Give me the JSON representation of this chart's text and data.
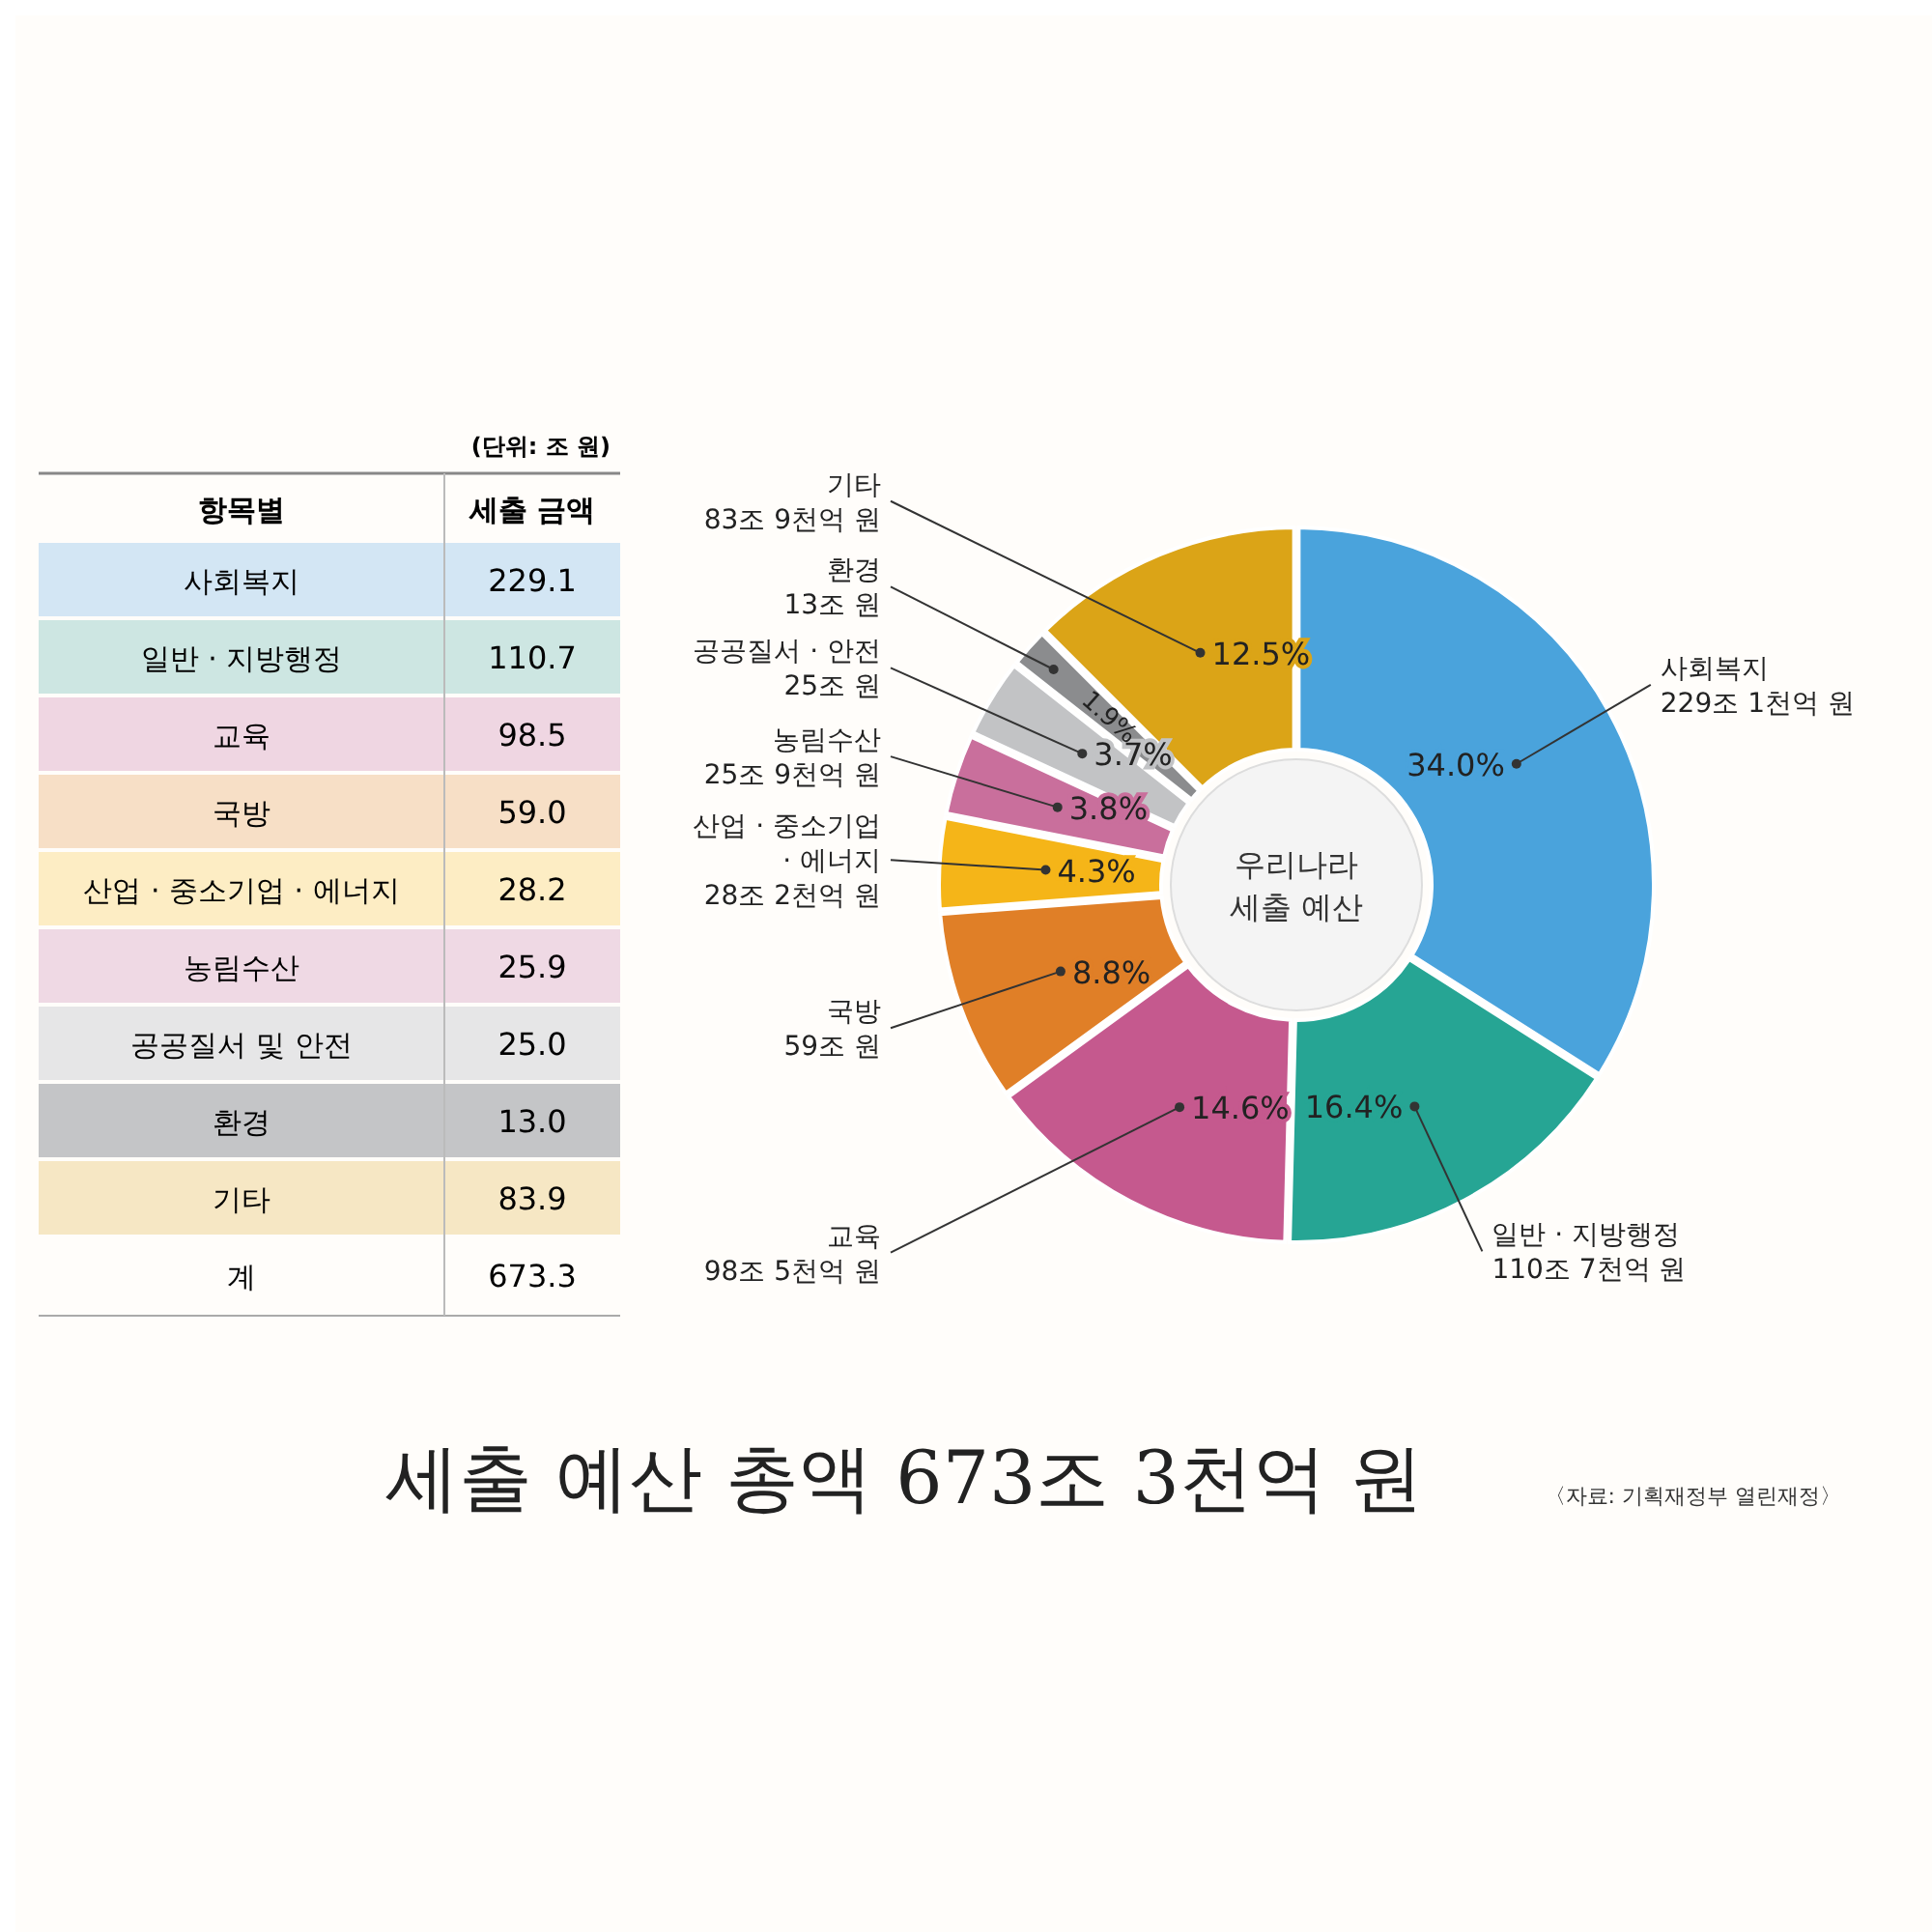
{
  "chart_data": [
    {
      "type": "other",
      "categories": [
        "사회복지",
        "일반 · 지방행정",
        "교육",
        "국방",
        "산업 · 중소기업 · 에너지",
        "농림수산",
        "공공질서 및 안전",
        "환경",
        "기타"
      ],
      "colors": [
        "#d3e6f4",
        "#cde6e2",
        "#efd6e2",
        "#f7dfc6",
        "#fdedc4",
        "#efd9e4",
        "#e6e6e7",
        "#c4c5c7",
        "#f6e7c4"
      ],
      "value_labels": [
        "229.1",
        "110.7",
        "98.5",
        "59.0",
        "28.2",
        "25.9",
        "25.0",
        "13.0",
        "83.9"
      ],
      "totals": [
        "673.3"
      ],
      "annotations": [
        "(단위: 조 원)",
        "항목별",
        "세출 금액",
        "계"
      ]
    },
    {
      "type": "donut",
      "title": "세출 예산 총액 673조 3천억 원",
      "categories": [
        "사회복지",
        "일반 · 지방행정",
        "교육",
        "국방",
        "산업 · 중소기업 · 에너지",
        "농림수산",
        "공공질서 · 안전",
        "환경",
        "기타"
      ],
      "values": [
        34.0,
        16.4,
        14.6,
        8.8,
        4.3,
        3.8,
        3.7,
        1.9,
        12.5
      ],
      "value_labels": [
        "34.0%",
        "16.4%",
        "14.6%",
        "8.8%",
        "4.3%",
        "3.8%",
        "3.7%",
        "1.9%",
        "12.5%"
      ],
      "colors": [
        "#4aa3dc",
        "#26a594",
        "#c5598e",
        "#e07f27",
        "#f5b518",
        "#c96f9c",
        "#c2c3c5",
        "#8b8c8e",
        "#dba417"
      ],
      "annotations": [
        "우리나라\n세출 예산",
        "〈자료: 기획재정부 열린재정〉",
        {
          "text": "229조 1천억 원",
          "x": "사회복지"
        },
        {
          "text": "110조 7천억 원",
          "x": "일반 · 지방행정"
        },
        {
          "text": "98조 5천억 원",
          "x": "교육"
        },
        {
          "text": "59조 원",
          "x": "국방"
        },
        {
          "text": "28조 2천억 원",
          "x": "산업 · 중소기업 · 에너지"
        },
        {
          "text": "25조 9천억 원",
          "x": "농림수산"
        },
        {
          "text": "25조 원",
          "x": "공공질서 · 안전"
        },
        {
          "text": "13조 원",
          "x": "환경"
        },
        {
          "text": "83조 9천억 원",
          "x": "기타"
        }
      ]
    }
  ]
}
